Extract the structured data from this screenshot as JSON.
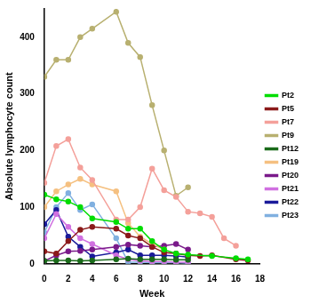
{
  "chart_data": {
    "type": "line",
    "x_label": "Week",
    "y_label": "Absolute lymphocyte count",
    "xlim": [
      0,
      18
    ],
    "xticks": [
      0,
      2,
      4,
      6,
      8,
      10,
      12,
      14,
      16,
      18
    ],
    "ylim": [
      0,
      450
    ],
    "yticks": [
      0,
      100,
      200,
      300,
      400
    ],
    "grid": false,
    "legend": "right",
    "marker": "circle",
    "series": [
      {
        "name": "Pt2",
        "color": "#00dd00",
        "x": [
          0,
          1,
          2,
          3,
          4,
          6,
          7,
          8,
          9,
          10,
          11,
          12,
          14,
          16,
          17
        ],
        "values": [
          122,
          114,
          110,
          100,
          80,
          74,
          62,
          62,
          40,
          25,
          18,
          16,
          14,
          10,
          8
        ]
      },
      {
        "name": "Pt5",
        "color": "#8b1a1a",
        "x": [
          0,
          1,
          2,
          3,
          4,
          6,
          7,
          8,
          9,
          10,
          11,
          12,
          13,
          14,
          16,
          17
        ],
        "values": [
          22,
          18,
          40,
          60,
          65,
          62,
          50,
          45,
          30,
          20,
          18,
          15,
          14,
          15,
          8,
          6
        ]
      },
      {
        "name": "Pt7",
        "color": "#f4a09a",
        "x": [
          0,
          1,
          2,
          3,
          4,
          6,
          7,
          8,
          9,
          10,
          11,
          12,
          13,
          14,
          15,
          16
        ],
        "values": [
          143,
          208,
          220,
          170,
          148,
          78,
          78,
          100,
          168,
          130,
          118,
          92,
          89,
          83,
          45,
          32
        ]
      },
      {
        "name": "Pt9",
        "color": "#b8b070",
        "x": [
          0,
          1,
          2,
          3,
          4,
          6,
          7,
          8,
          9,
          10,
          11,
          12
        ],
        "values": [
          330,
          360,
          360,
          400,
          415,
          445,
          390,
          365,
          280,
          200,
          120,
          135
        ]
      },
      {
        "name": "Pt12",
        "color": "#1a6b1a",
        "x": [
          0,
          1,
          2,
          3,
          4,
          6,
          7,
          8,
          9,
          10,
          11,
          12
        ],
        "values": [
          5,
          6,
          6,
          5,
          6,
          8,
          9,
          8,
          8,
          8,
          7,
          7
        ]
      },
      {
        "name": "Pt19",
        "color": "#f5c080",
        "x": [
          0,
          1,
          2,
          3,
          4,
          6,
          7,
          8,
          9,
          10
        ],
        "values": [
          100,
          128,
          140,
          150,
          140,
          128,
          72,
          48,
          35,
          25
        ]
      },
      {
        "name": "Pt20",
        "color": "#7a1a8a",
        "x": [
          0,
          1,
          2,
          3,
          4,
          6,
          7,
          8,
          9,
          10,
          11,
          12
        ],
        "values": [
          5,
          15,
          22,
          23,
          25,
          30,
          34,
          32,
          30,
          32,
          35,
          25
        ]
      },
      {
        "name": "Pt21",
        "color": "#d070e0",
        "x": [
          0,
          1,
          2,
          3,
          4,
          6,
          7,
          8,
          9,
          10,
          11,
          12
        ],
        "values": [
          45,
          88,
          65,
          45,
          35,
          15,
          8,
          5,
          4,
          4,
          3,
          3
        ]
      },
      {
        "name": "Pt22",
        "color": "#1a1a9a",
        "x": [
          0,
          1,
          2,
          3,
          4,
          6,
          7,
          8,
          9,
          10,
          11,
          12
        ],
        "values": [
          70,
          95,
          48,
          30,
          13,
          20,
          25,
          15,
          15,
          15,
          14,
          12
        ]
      },
      {
        "name": "Pt23",
        "color": "#80b0e0",
        "x": [
          0,
          1,
          2,
          3,
          4,
          6,
          7,
          8,
          9,
          10,
          11,
          12
        ],
        "values": [
          55,
          100,
          125,
          95,
          105,
          45,
          3,
          3,
          2,
          2,
          2,
          1
        ]
      }
    ]
  }
}
